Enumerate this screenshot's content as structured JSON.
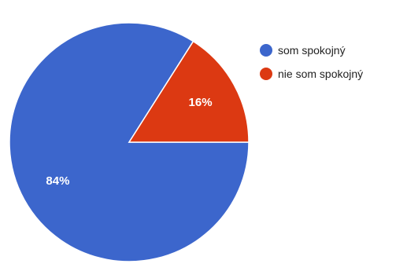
{
  "chart_data": {
    "type": "pie",
    "title": "",
    "series": [
      {
        "name": "som spokojný",
        "value": 84,
        "label": "84%",
        "color": "#3c66cc"
      },
      {
        "name": "nie som spokojný",
        "value": 16,
        "label": "16%",
        "color": "#dc3912"
      }
    ],
    "legend_position": "right"
  }
}
